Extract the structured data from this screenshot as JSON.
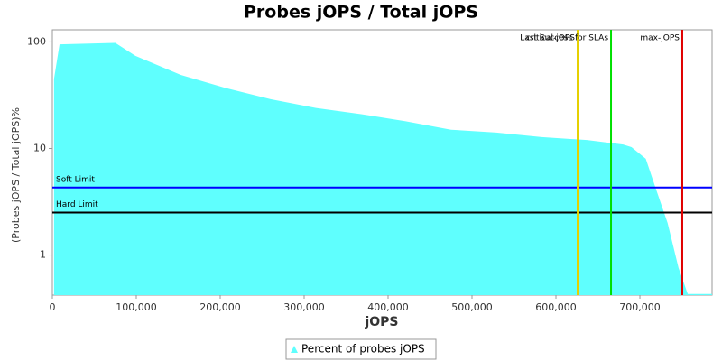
{
  "chart_data": {
    "type": "area",
    "title": "Probes jOPS / Total jOPS",
    "x_label": "jOPS",
    "y_label": "(Probes jOPS / Total jOPS)%",
    "x": [
      2000,
      8600,
      75000,
      99000,
      153000,
      206000,
      260000,
      314000,
      368000,
      421000,
      475000,
      529000,
      583000,
      637000,
      680000,
      690000,
      707000,
      719000,
      733000,
      746000,
      757000,
      786000
    ],
    "series": [
      {
        "name": "Percent of probes jOPS",
        "color": "#5ffffe",
        "values": [
          45,
          95,
          98,
          74,
          49,
          37,
          29,
          24,
          21,
          18,
          15,
          14.1,
          12.8,
          12,
          10.9,
          10.3,
          8,
          4.2,
          2,
          0.76,
          0.43,
          0.43
        ]
      }
    ],
    "xlim": [
      0,
      786000
    ],
    "xticks": [
      0,
      {
        "value": 100000,
        "label": "100,000"
      },
      {
        "value": 200000,
        "label": "200,000"
      },
      {
        "value": 300000,
        "label": "300,000"
      },
      {
        "value": 400000,
        "label": "400,000"
      },
      {
        "value": 500000,
        "label": "500,000"
      },
      {
        "value": 600000,
        "label": "600,000"
      },
      {
        "value": 700000,
        "label": "700,000"
      }
    ],
    "ylim": [
      0.42,
      130
    ],
    "yticks": [
      1,
      10,
      100
    ],
    "log_y": true,
    "reference_lines": [
      {
        "orientation": "horizontal",
        "label": "Soft Limit",
        "value": 4.3,
        "color": "#0000ff"
      },
      {
        "orientation": "horizontal",
        "label": "Hard Limit",
        "value": 2.5,
        "color": "#000000"
      },
      {
        "orientation": "vertical",
        "label": "critical-jOPS",
        "value": 625800,
        "color": "#e6d000"
      },
      {
        "orientation": "vertical",
        "label": "Last Success for SLAs",
        "value": 665600,
        "color": "#00e000"
      },
      {
        "orientation": "vertical",
        "label": "max-jOPS",
        "value": 750500,
        "color": "#e00000"
      }
    ],
    "legend": "bottom"
  }
}
